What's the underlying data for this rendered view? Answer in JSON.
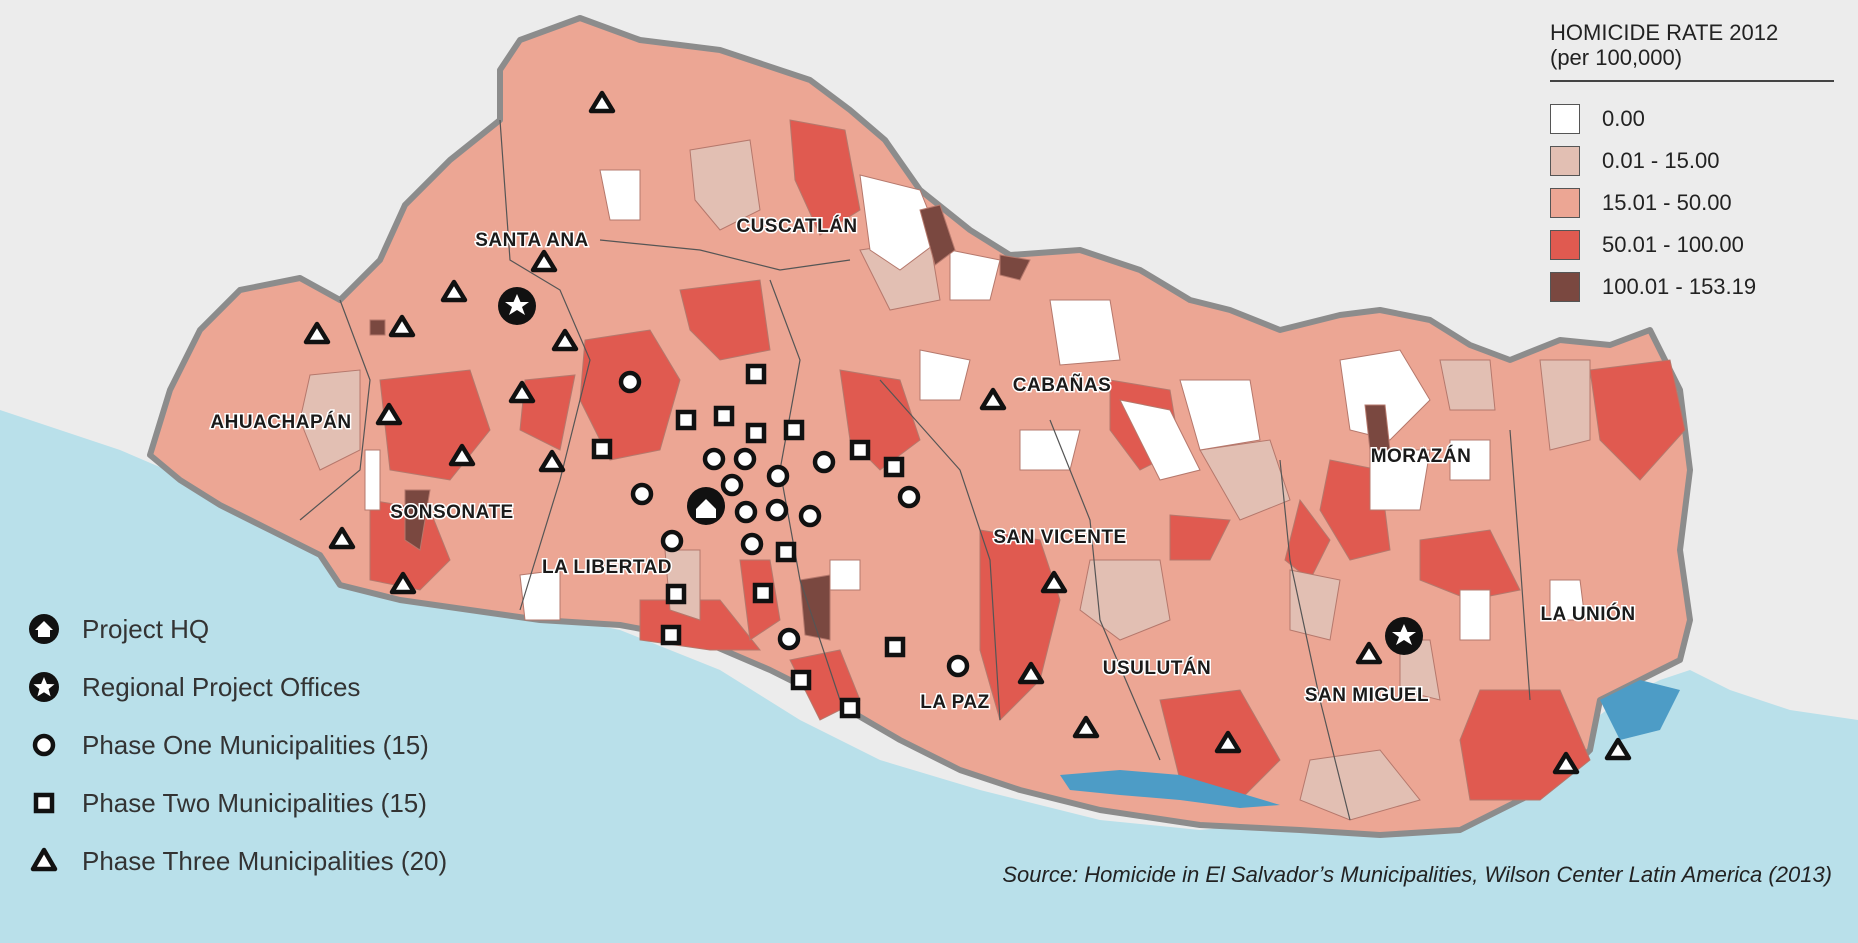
{
  "legend": {
    "title_line1": "HOMICIDE RATE 2012",
    "title_line2": "(per 100,000)",
    "classes": [
      {
        "label": "0.00",
        "color": "#ffffff"
      },
      {
        "label": "0.01  - 15.00",
        "color": "#e2bfb3"
      },
      {
        "label": "15.01 - 50.00",
        "color": "#eca694"
      },
      {
        "label": "50.01 - 100.00",
        "color": "#e05a50"
      },
      {
        "label": "100.01 - 153.19",
        "color": "#7a4840"
      }
    ]
  },
  "symbols": [
    {
      "label": "Project HQ",
      "icon": "house-icon"
    },
    {
      "label": "Regional Project Offices",
      "icon": "star-icon"
    },
    {
      "label": "Phase One Municipalities (15)",
      "icon": "circle-icon"
    },
    {
      "label": "Phase Two Municipalities (15)",
      "icon": "square-icon"
    },
    {
      "label": "Phase Three Municipalities (20)",
      "icon": "triangle-icon"
    }
  ],
  "departments": [
    "SANTA ANA",
    "CUSCATLÁN",
    "CABAÑAS",
    "AHUACHAPÁN",
    "SONSONATE",
    "LA LIBERTAD",
    "SAN VICENTE",
    "MORAZÁN",
    "LA UNIÓN",
    "USULUTÁN",
    "SAN MIGUEL",
    "LA PAZ"
  ],
  "source": "Source: Homicide in El Salvador’s Municipalities, Wilson Center Latin America (2013)",
  "colors": {
    "sea": "#b9e0ea",
    "land_outside": "#eeeeee",
    "border": "#8c8c8c",
    "marker_stroke": "#111111"
  }
}
